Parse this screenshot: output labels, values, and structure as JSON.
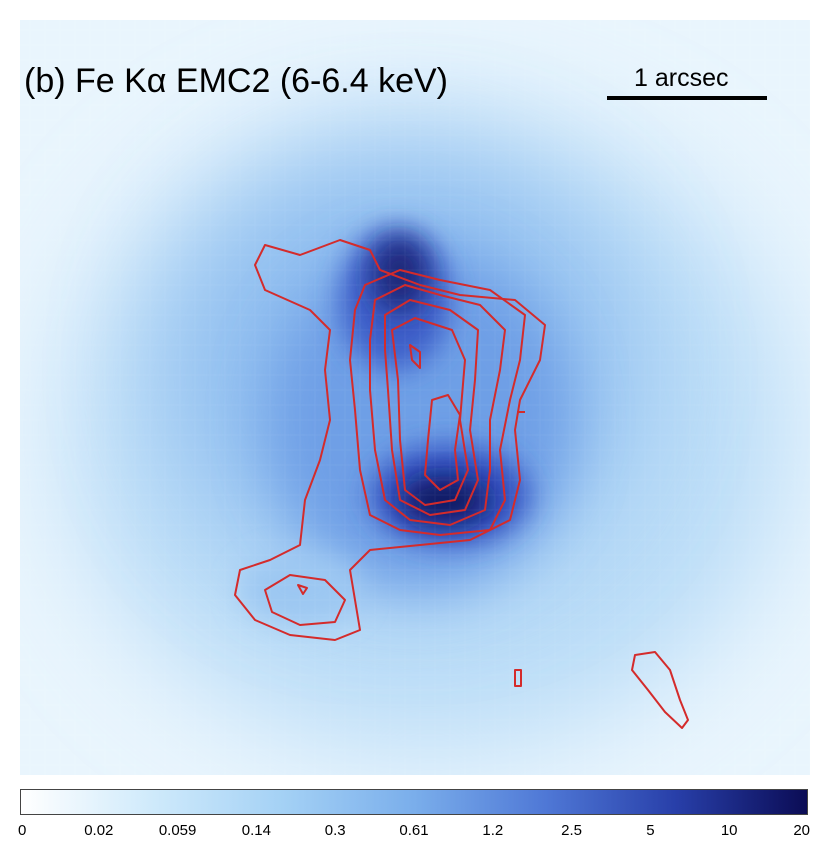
{
  "panel": {
    "title": "(b) Fe Kα EMC2 (6-6.4 keV)",
    "scale_bar_label": "1 arcsec"
  },
  "colorbar": {
    "tick_labels": [
      "0",
      "0.02",
      "0.059",
      "0.14",
      "0.3",
      "0.61",
      "1.2",
      "2.5",
      "5",
      "10",
      "20"
    ],
    "colors": [
      "#ffffff",
      "#cfeafb",
      "#a4d1f5",
      "#7aaeeb",
      "#4f78d6",
      "#283fa9",
      "#0b0c55"
    ]
  },
  "image": {
    "colormap": "blue",
    "contour_color": "#d42b2b"
  }
}
